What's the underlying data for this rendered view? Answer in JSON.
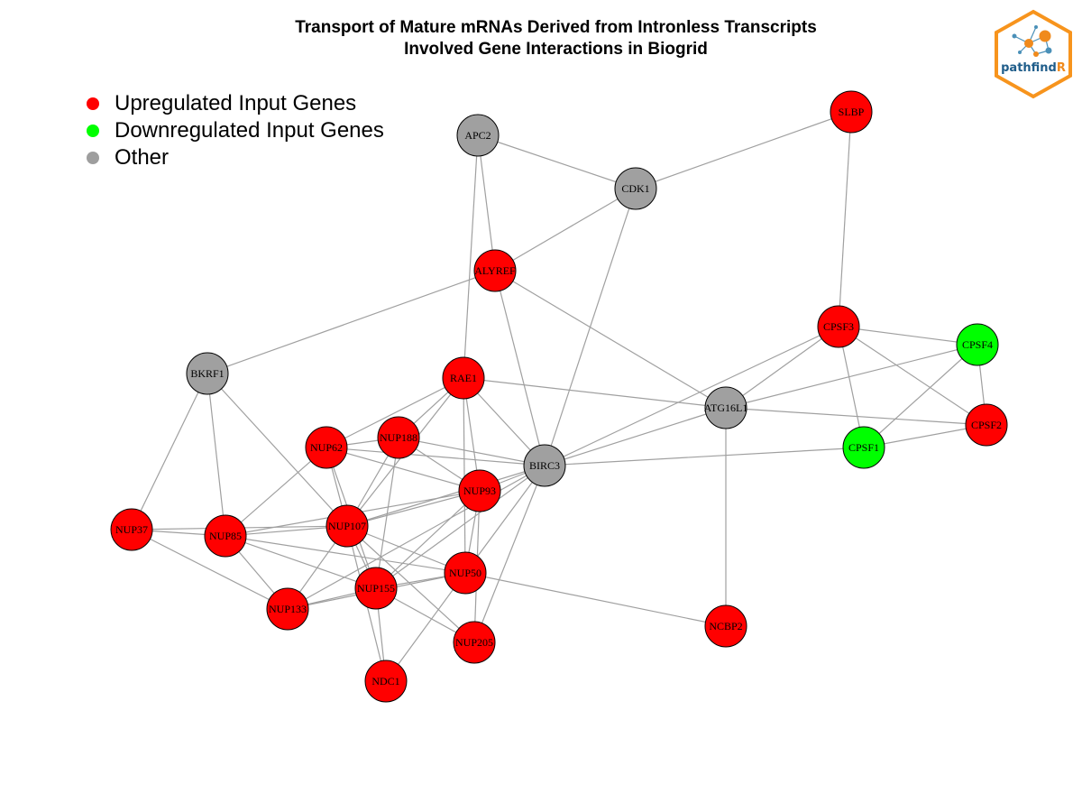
{
  "title_line1": "Transport of Mature mRNAs Derived from Intronless Transcripts",
  "title_line2": "Involved Gene Interactions in Biogrid",
  "legend": [
    {
      "label": "Upregulated Input Genes",
      "color": "#ff0000"
    },
    {
      "label": "Downregulated Input Genes",
      "color": "#00ff00"
    },
    {
      "label": "Other",
      "color": "#9e9e9e"
    }
  ],
  "logo": {
    "text_main": "pathfind",
    "text_accent": "R",
    "frame_color": "#f7941d"
  },
  "colors": {
    "up": "#ff0000",
    "down": "#00ff00",
    "other": "#a0a0a0",
    "edge": "#a0a0a0"
  },
  "nodes": [
    {
      "id": "APC2",
      "type": "other"
    },
    {
      "id": "SLBP",
      "type": "up"
    },
    {
      "id": "CDK1",
      "type": "other"
    },
    {
      "id": "ALYREF",
      "type": "up"
    },
    {
      "id": "CPSF3",
      "type": "up"
    },
    {
      "id": "CPSF4",
      "type": "down"
    },
    {
      "id": "BKRF1",
      "type": "other"
    },
    {
      "id": "RAE1",
      "type": "up"
    },
    {
      "id": "ATG16L1",
      "type": "other"
    },
    {
      "id": "CPSF2",
      "type": "up"
    },
    {
      "id": "NUP188",
      "type": "up"
    },
    {
      "id": "NUP62",
      "type": "up"
    },
    {
      "id": "CPSF1",
      "type": "down"
    },
    {
      "id": "BIRC3",
      "type": "other"
    },
    {
      "id": "NUP93",
      "type": "up"
    },
    {
      "id": "NUP37",
      "type": "up"
    },
    {
      "id": "NUP85",
      "type": "up"
    },
    {
      "id": "NUP107",
      "type": "up"
    },
    {
      "id": "NUP50",
      "type": "up"
    },
    {
      "id": "NUP155",
      "type": "up"
    },
    {
      "id": "NUP133",
      "type": "up"
    },
    {
      "id": "NCBP2",
      "type": "up"
    },
    {
      "id": "NUP205",
      "type": "up"
    },
    {
      "id": "NDC1",
      "type": "up"
    }
  ],
  "edges": [
    [
      "APC2",
      "CDK1"
    ],
    [
      "APC2",
      "ALYREF"
    ],
    [
      "APC2",
      "RAE1"
    ],
    [
      "SLBP",
      "CDK1"
    ],
    [
      "SLBP",
      "CPSF3"
    ],
    [
      "CDK1",
      "ALYREF"
    ],
    [
      "CDK1",
      "BIRC3"
    ],
    [
      "ALYREF",
      "BKRF1"
    ],
    [
      "ALYREF",
      "BIRC3"
    ],
    [
      "ALYREF",
      "ATG16L1"
    ],
    [
      "CPSF3",
      "CPSF4"
    ],
    [
      "CPSF3",
      "CPSF2"
    ],
    [
      "CPSF3",
      "CPSF1"
    ],
    [
      "CPSF3",
      "ATG16L1"
    ],
    [
      "CPSF3",
      "BIRC3"
    ],
    [
      "CPSF4",
      "CPSF2"
    ],
    [
      "CPSF4",
      "CPSF1"
    ],
    [
      "CPSF4",
      "ATG16L1"
    ],
    [
      "CPSF2",
      "CPSF1"
    ],
    [
      "CPSF2",
      "ATG16L1"
    ],
    [
      "BIRC3",
      "CPSF1"
    ],
    [
      "BIRC3",
      "ATG16L1"
    ],
    [
      "ATG16L1",
      "RAE1"
    ],
    [
      "ATG16L1",
      "NCBP2"
    ],
    [
      "BKRF1",
      "NUP37"
    ],
    [
      "BKRF1",
      "NUP85"
    ],
    [
      "BKRF1",
      "NUP107"
    ],
    [
      "RAE1",
      "NUP62"
    ],
    [
      "RAE1",
      "NUP188"
    ],
    [
      "RAE1",
      "NUP93"
    ],
    [
      "RAE1",
      "NUP107"
    ],
    [
      "RAE1",
      "NUP50"
    ],
    [
      "RAE1",
      "BIRC3"
    ],
    [
      "NUP62",
      "NUP188"
    ],
    [
      "NUP62",
      "NUP93"
    ],
    [
      "NUP62",
      "NUP107"
    ],
    [
      "NUP62",
      "NUP155"
    ],
    [
      "NUP62",
      "NUP85"
    ],
    [
      "NUP62",
      "BIRC3"
    ],
    [
      "NUP188",
      "NUP93"
    ],
    [
      "NUP188",
      "NUP107"
    ],
    [
      "NUP188",
      "NUP155"
    ],
    [
      "NUP188",
      "BIRC3"
    ],
    [
      "NUP93",
      "NUP107"
    ],
    [
      "NUP93",
      "NUP50"
    ],
    [
      "NUP93",
      "NUP205"
    ],
    [
      "NUP93",
      "NUP155"
    ],
    [
      "NUP93",
      "NUP85"
    ],
    [
      "NUP93",
      "BIRC3"
    ],
    [
      "BIRC3",
      "NUP107"
    ],
    [
      "BIRC3",
      "NUP50"
    ],
    [
      "BIRC3",
      "NUP155"
    ],
    [
      "BIRC3",
      "NUP133"
    ],
    [
      "BIRC3",
      "NUP205"
    ],
    [
      "NUP37",
      "NUP85"
    ],
    [
      "NUP37",
      "NUP107"
    ],
    [
      "NUP37",
      "NUP133"
    ],
    [
      "NUP85",
      "NUP107"
    ],
    [
      "NUP85",
      "NUP50"
    ],
    [
      "NUP85",
      "NUP155"
    ],
    [
      "NUP85",
      "NUP133"
    ],
    [
      "NUP107",
      "NUP50"
    ],
    [
      "NUP107",
      "NUP155"
    ],
    [
      "NUP107",
      "NUP133"
    ],
    [
      "NUP107",
      "NUP205"
    ],
    [
      "NUP107",
      "NDC1"
    ],
    [
      "NUP50",
      "NUP155"
    ],
    [
      "NUP50",
      "NUP133"
    ],
    [
      "NUP50",
      "NCBP2"
    ],
    [
      "NUP50",
      "NDC1"
    ],
    [
      "NUP155",
      "NUP133"
    ],
    [
      "NUP155",
      "NUP205"
    ],
    [
      "NUP155",
      "NDC1"
    ]
  ]
}
